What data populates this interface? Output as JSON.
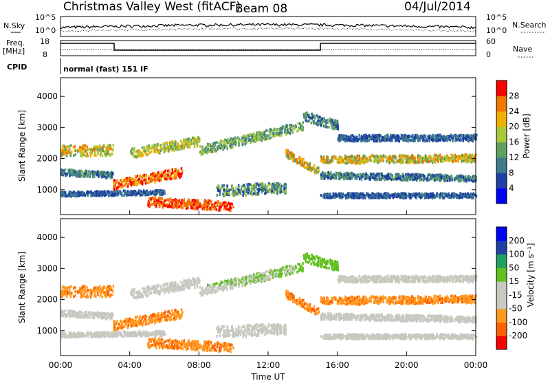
{
  "header": {
    "station": "Christmas Valley West (fitACF)",
    "beam": "Beam 08",
    "date": "04/Jul/2014"
  },
  "noise_panel": {
    "left_label": "N.Sky",
    "right_label": "N.Search",
    "left_ticks": [
      "10^5",
      "10^0"
    ],
    "right_ticks": [
      "10^5",
      "10^0"
    ]
  },
  "freq_panel": {
    "left_label_1": "Freq.",
    "left_label_2": "[MHz]",
    "left_ticks": [
      "18",
      "8"
    ],
    "right_label": "Nave",
    "right_ticks": [
      "60",
      "0"
    ]
  },
  "cpid_panel": {
    "label": "CPID",
    "text": "normal (fast) 151 IF"
  },
  "colors": {
    "scale_power": [
      "#0000ff",
      "#1f3fa6",
      "#3d7a8c",
      "#5fa05f",
      "#a8c83c",
      "#f0b000",
      "#f07800",
      "#ff0000"
    ],
    "scale_velocity": [
      "#ff0000",
      "#ff6000",
      "#ff9a20",
      "#c8c8c0",
      "#c8c8c0",
      "#60c020",
      "#20a060",
      "#1f3fa6",
      "#0000ff"
    ],
    "ground_scatter": "#c8c8c0"
  },
  "chart_data": [
    {
      "type": "heatmap",
      "quantity": "power",
      "ylabel": "Slant Range [km]",
      "yticks": [
        1000,
        2000,
        3000,
        4000
      ],
      "ylim": [
        200,
        4600
      ],
      "xlim": [
        "00:00",
        "24:00"
      ],
      "colorbar_label": "Power [dB]",
      "colorbar_ticks": [
        4,
        8,
        12,
        16,
        20,
        24,
        28
      ],
      "colorbar_range": [
        0,
        30
      ]
    },
    {
      "type": "heatmap",
      "quantity": "velocity",
      "ylabel": "Slant Range [km]",
      "yticks": [
        1000,
        2000,
        3000,
        4000
      ],
      "ylim": [
        200,
        4600
      ],
      "xlabel": "Time UT",
      "xticks": [
        "00:00",
        "04:00",
        "08:00",
        "12:00",
        "16:00",
        "20:00",
        "00:00"
      ],
      "xlim": [
        "00:00",
        "24:00"
      ],
      "colorbar_label": "Velocity [m s⁻¹]",
      "colorbar_ticks": [
        "200",
        "100",
        "50",
        "15",
        "-15",
        "-50",
        "-100",
        "-200"
      ],
      "colorbar_range": [
        -250,
        250
      ]
    }
  ]
}
